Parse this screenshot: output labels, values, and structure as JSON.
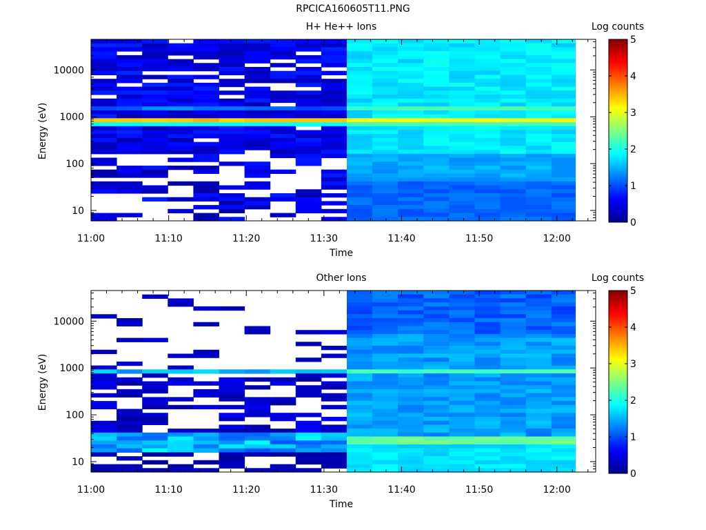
{
  "figure_title": "RPCICA160605T11.PNG",
  "colors": {
    "deep_blue": "#00008f",
    "blue": "#0020ff",
    "cyan": "#00e5ff",
    "orange": "#ff9a00",
    "dark_red": "#800000"
  },
  "chart_data": [
    {
      "type": "heatmap",
      "title": "H+ He++ Ions",
      "xlabel": "Time",
      "ylabel": "Energy (eV)",
      "x_ticks": [
        "11:00",
        "11:10",
        "11:20",
        "11:30",
        "11:40",
        "11:50",
        "12:00"
      ],
      "y_scale": "log",
      "y_ticks": [
        "10",
        "100",
        "1000",
        "10000"
      ],
      "y_range_ev": [
        6,
        45000
      ],
      "colorbar": {
        "label": "Log counts",
        "range": [
          0,
          5
        ],
        "ticks": [
          "0",
          "1",
          "2",
          "3",
          "4",
          "5"
        ]
      },
      "columns_time": [
        "11:00",
        "11:03",
        "11:06",
        "11:10",
        "11:13",
        "11:16",
        "11:19",
        "11:23",
        "11:26",
        "11:29",
        "11:32",
        "11:35",
        "11:39",
        "11:42",
        "11:45",
        "11:48",
        "11:52",
        "11:55",
        "11:58"
      ],
      "blank_after_time": "12:01",
      "data_gap_before_time": "11:32",
      "features": [
        {
          "name": "sparse low counts before 11:32",
          "log_counts": 0.3
        },
        {
          "name": "bright band near 800 eV",
          "energy_ev": 800,
          "log_counts": 3.3
        },
        {
          "name": "continuous moderate counts after 11:32",
          "log_counts": 1.8
        }
      ]
    },
    {
      "type": "heatmap",
      "title": "Other Ions",
      "xlabel": "Time",
      "ylabel": "Energy (eV)",
      "x_ticks": [
        "11:00",
        "11:10",
        "11:20",
        "11:30",
        "11:40",
        "11:50",
        "12:00"
      ],
      "y_scale": "log",
      "y_ticks": [
        "10",
        "100",
        "1000",
        "10000"
      ],
      "y_range_ev": [
        6,
        45000
      ],
      "colorbar": {
        "label": "Log counts",
        "range": [
          0,
          5
        ],
        "ticks": [
          "0",
          "1",
          "2",
          "3",
          "4",
          "5"
        ]
      },
      "columns_time": [
        "11:00",
        "11:03",
        "11:06",
        "11:10",
        "11:13",
        "11:16",
        "11:19",
        "11:23",
        "11:26",
        "11:29",
        "11:32",
        "11:35",
        "11:39",
        "11:42",
        "11:45",
        "11:48",
        "11:52",
        "11:55",
        "11:58"
      ],
      "blank_after_time": "12:01",
      "features": [
        {
          "name": "very sparse counts above 1000 eV before 11:32",
          "log_counts": 0.2
        },
        {
          "name": "band near 800 eV",
          "energy_ev": 800,
          "log_counts": 1.9
        },
        {
          "name": "band near 25 eV",
          "energy_ev": 25,
          "log_counts": 2.3
        },
        {
          "name": "moderate counts after 11:32",
          "log_counts": 1.3
        }
      ]
    }
  ]
}
